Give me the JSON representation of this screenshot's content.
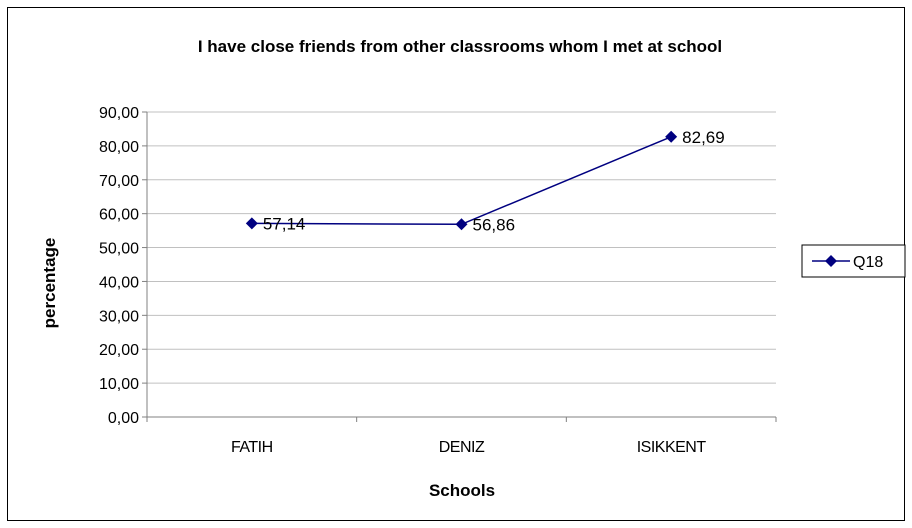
{
  "chart_data": {
    "type": "line",
    "title": "I have close friends from other classrooms whom I met at school",
    "xlabel": "Schools",
    "ylabel": "percentage",
    "categories": [
      "FATIH",
      "DENIZ",
      "ISIKKENT"
    ],
    "series": [
      {
        "name": "Q18",
        "values": [
          57.14,
          56.86,
          82.69
        ],
        "labels": [
          "57,14",
          "56,86",
          "82,69"
        ]
      }
    ],
    "ylim": [
      0,
      90
    ],
    "yticks": [
      "0,00",
      "10,00",
      "20,00",
      "30,00",
      "40,00",
      "50,00",
      "60,00",
      "70,00",
      "80,00",
      "90,00"
    ],
    "grid": true,
    "legend": "right",
    "colors": {
      "series": "#000080",
      "grid": "#c0c0c0",
      "axis": "#808080"
    }
  }
}
